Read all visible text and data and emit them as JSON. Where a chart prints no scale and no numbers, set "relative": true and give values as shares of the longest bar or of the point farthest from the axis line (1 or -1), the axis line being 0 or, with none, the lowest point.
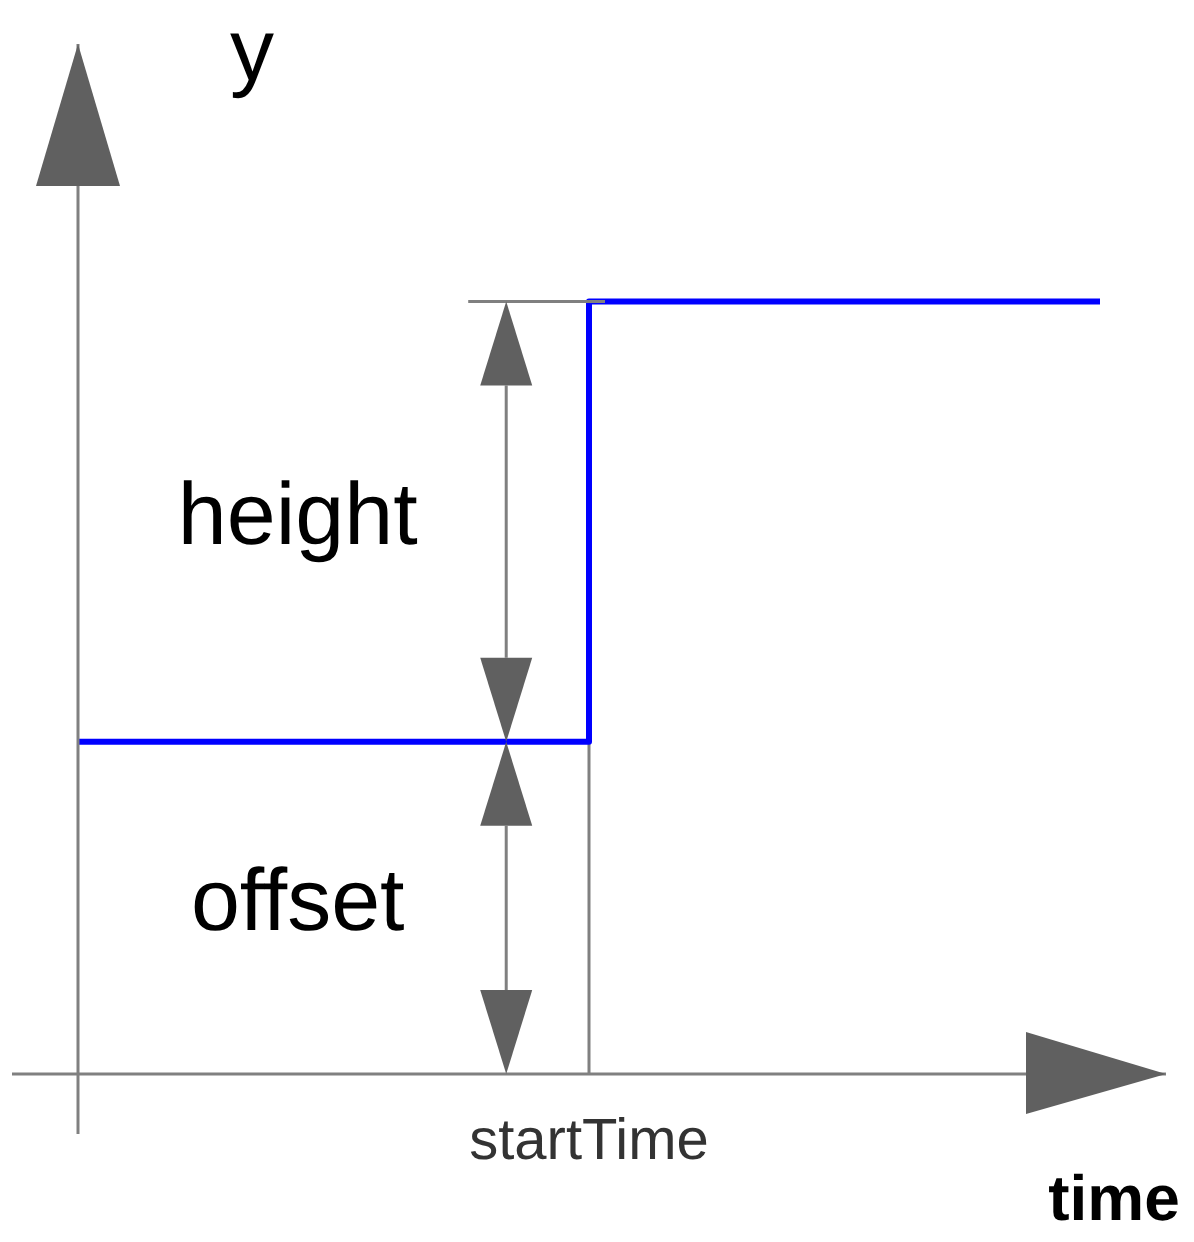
{
  "chart_data": {
    "type": "step",
    "xlabel": "time",
    "ylabel": "y",
    "categories": [
      null,
      null,
      null
    ],
    "values": [
      0.43,
      1,
      1
    ],
    "color": "#0000ff",
    "relative": true,
    "marker": "none",
    "annotations": [
      "height",
      "offset",
      "startTime"
    ]
  }
}
